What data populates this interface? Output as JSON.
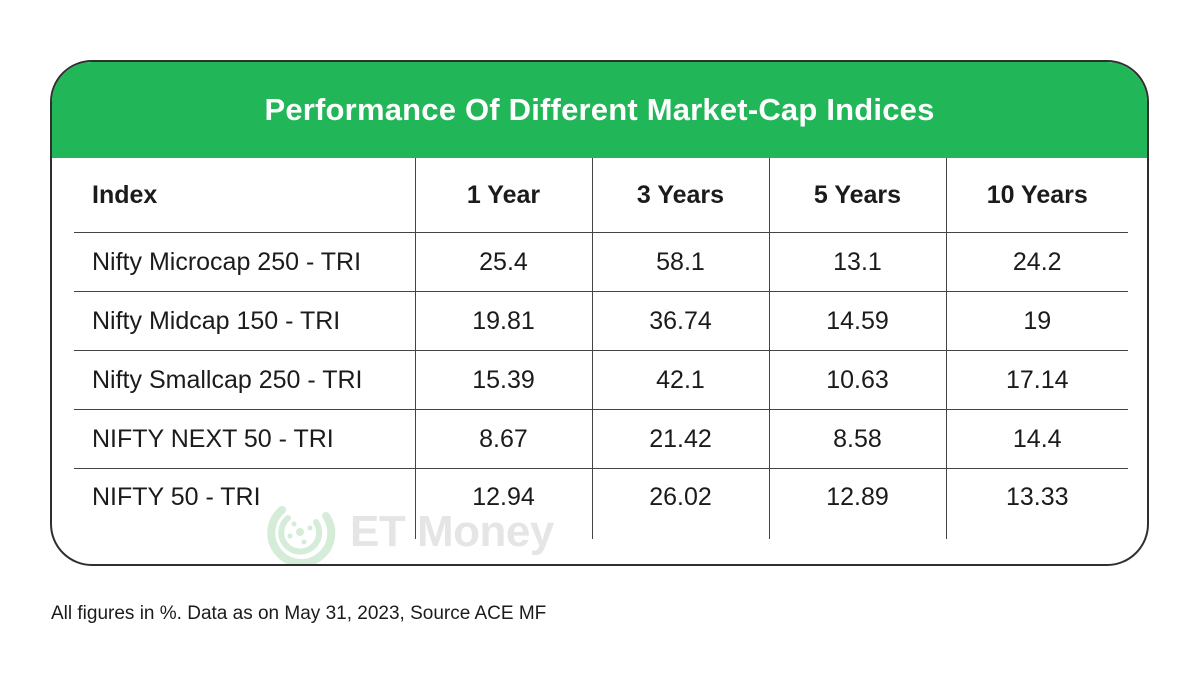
{
  "chart_data": {
    "type": "table",
    "title": "Performance Of Different Market-Cap Indices",
    "columns": [
      "Index",
      "1 Year",
      "3 Years",
      "5 Years",
      "10 Years"
    ],
    "rows": [
      [
        "Nifty Microcap 250 - TRI",
        "25.4",
        "58.1",
        "13.1",
        "24.2"
      ],
      [
        "Nifty Midcap 150 - TRI",
        "19.81",
        "36.74",
        "14.59",
        "19"
      ],
      [
        "Nifty Smallcap 250 - TRI",
        "15.39",
        "42.1",
        "10.63",
        "17.14"
      ],
      [
        "NIFTY NEXT 50 - TRI",
        "8.67",
        "21.42",
        "8.58",
        "14.4"
      ],
      [
        "NIFTY 50 - TRI",
        "12.94",
        "26.02",
        "12.89",
        "13.33"
      ]
    ],
    "header_color": "#21b657"
  },
  "watermark": {
    "text": "ET Money",
    "icon": "et-money-logo-icon"
  },
  "footnote": "All figures in %. Data as on May 31, 2023, Source ACE MF"
}
